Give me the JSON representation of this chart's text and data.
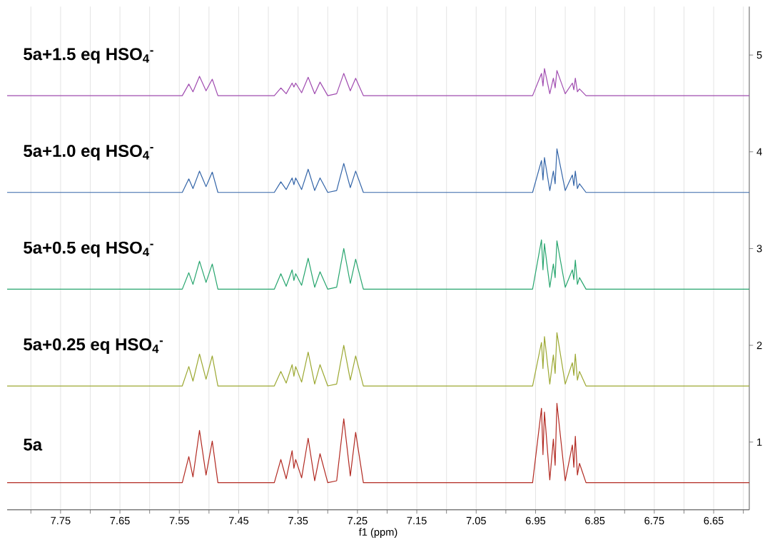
{
  "chart_data": {
    "type": "line",
    "xlabel": "f1 (ppm)",
    "x": [
      7.84,
      7.545,
      7.534,
      7.527,
      7.516,
      7.505,
      7.4945,
      7.485,
      7.39,
      7.379,
      7.37,
      7.36,
      7.357,
      7.354,
      7.344,
      7.333,
      7.322,
      7.313,
      7.3,
      7.285,
      7.273,
      7.262,
      7.253,
      7.24,
      6.955,
      6.94,
      6.9375,
      6.935,
      6.926,
      6.92,
      6.917,
      6.914,
      6.9,
      6.888,
      6.8855,
      6.883,
      6.8795,
      6.876,
      6.865,
      6.59
    ],
    "xlim": [
      7.84,
      6.59
    ],
    "xticks": [
      {
        "value": 7.8,
        "label": null
      },
      7.75,
      {
        "value": 7.7,
        "label": null
      },
      7.65,
      {
        "value": 7.6,
        "label": null
      },
      7.55,
      {
        "value": 7.5,
        "label": null
      },
      7.45,
      {
        "value": 7.4,
        "label": null
      },
      7.35,
      {
        "value": 7.3,
        "label": null
      },
      7.25,
      {
        "value": 7.2,
        "label": null
      },
      7.15,
      {
        "value": 7.1,
        "label": null
      },
      7.05,
      {
        "value": 7.0,
        "label": null
      },
      6.95,
      {
        "value": 6.9,
        "label": null
      },
      6.85,
      {
        "value": 6.8,
        "label": null
      },
      6.75,
      {
        "value": 6.7,
        "label": null
      },
      6.65,
      {
        "value": 6.6,
        "label": null
      }
    ],
    "ylim": [
      0.3,
      5.5
    ],
    "yticks": [
      1,
      2,
      3,
      4,
      5
    ],
    "grid": "x",
    "series": [
      {
        "name": "5a",
        "color": "#b22a22",
        "values": [
          0.58,
          0.58,
          0.85,
          0.64,
          1.12,
          0.66,
          1.01,
          0.58,
          0.58,
          0.82,
          0.62,
          0.91,
          0.73,
          0.82,
          0.63,
          1.04,
          0.6,
          0.88,
          0.58,
          0.6,
          1.24,
          0.65,
          1.1,
          0.58,
          0.58,
          1.35,
          0.87,
          1.31,
          0.61,
          1.03,
          0.76,
          1.4,
          0.6,
          0.97,
          0.74,
          1.06,
          0.66,
          0.78,
          0.58,
          0.58
        ]
      },
      {
        "name": "5a+0.25 eq HSO$_{4}$$^{-}$",
        "color": "#9ca832",
        "values": [
          1.58,
          1.58,
          1.78,
          1.63,
          1.91,
          1.65,
          1.89,
          1.58,
          1.58,
          1.73,
          1.61,
          1.8,
          1.68,
          1.78,
          1.62,
          1.93,
          1.6,
          1.8,
          1.58,
          1.6,
          2.0,
          1.64,
          1.89,
          1.58,
          1.58,
          2.03,
          1.76,
          2.09,
          1.6,
          1.9,
          1.71,
          2.13,
          1.6,
          1.82,
          1.69,
          1.91,
          1.64,
          1.73,
          1.58,
          1.58
        ]
      },
      {
        "name": "5a+0.5 eq HSO$_{4}$$^{-}$",
        "color": "#27a56e",
        "values": [
          2.58,
          2.58,
          2.75,
          2.63,
          2.87,
          2.65,
          2.84,
          2.58,
          2.58,
          2.74,
          2.61,
          2.78,
          2.67,
          2.74,
          2.62,
          2.9,
          2.6,
          2.76,
          2.58,
          2.6,
          3.0,
          2.64,
          2.89,
          2.58,
          2.58,
          3.09,
          2.78,
          3.05,
          2.6,
          2.84,
          2.7,
          3.08,
          2.6,
          2.78,
          2.68,
          2.88,
          2.63,
          2.7,
          2.58,
          2.58
        ]
      },
      {
        "name": "5a+1.0 eq HSO$_{4}$$^{-}$",
        "color": "#3465a8",
        "values": [
          3.58,
          3.58,
          3.72,
          3.62,
          3.8,
          3.64,
          3.79,
          3.58,
          3.58,
          3.69,
          3.61,
          3.73,
          3.66,
          3.73,
          3.61,
          3.82,
          3.6,
          3.73,
          3.58,
          3.6,
          3.88,
          3.63,
          3.8,
          3.58,
          3.58,
          3.91,
          3.71,
          3.94,
          3.6,
          3.8,
          3.67,
          4.03,
          3.6,
          3.76,
          3.65,
          3.8,
          3.62,
          3.67,
          3.58,
          3.58
        ]
      },
      {
        "name": "5a+1.5 eq HSO$_{4}$$^{-}$",
        "color": "#a04cb0",
        "values": [
          4.58,
          4.58,
          4.7,
          4.62,
          4.78,
          4.63,
          4.75,
          4.58,
          4.58,
          4.66,
          4.6,
          4.71,
          4.67,
          4.71,
          4.61,
          4.77,
          4.6,
          4.72,
          4.58,
          4.6,
          4.81,
          4.63,
          4.76,
          4.58,
          4.58,
          4.81,
          4.68,
          4.86,
          4.6,
          4.76,
          4.66,
          4.84,
          4.6,
          4.71,
          4.64,
          4.76,
          4.62,
          4.65,
          4.58,
          4.58
        ]
      }
    ]
  }
}
